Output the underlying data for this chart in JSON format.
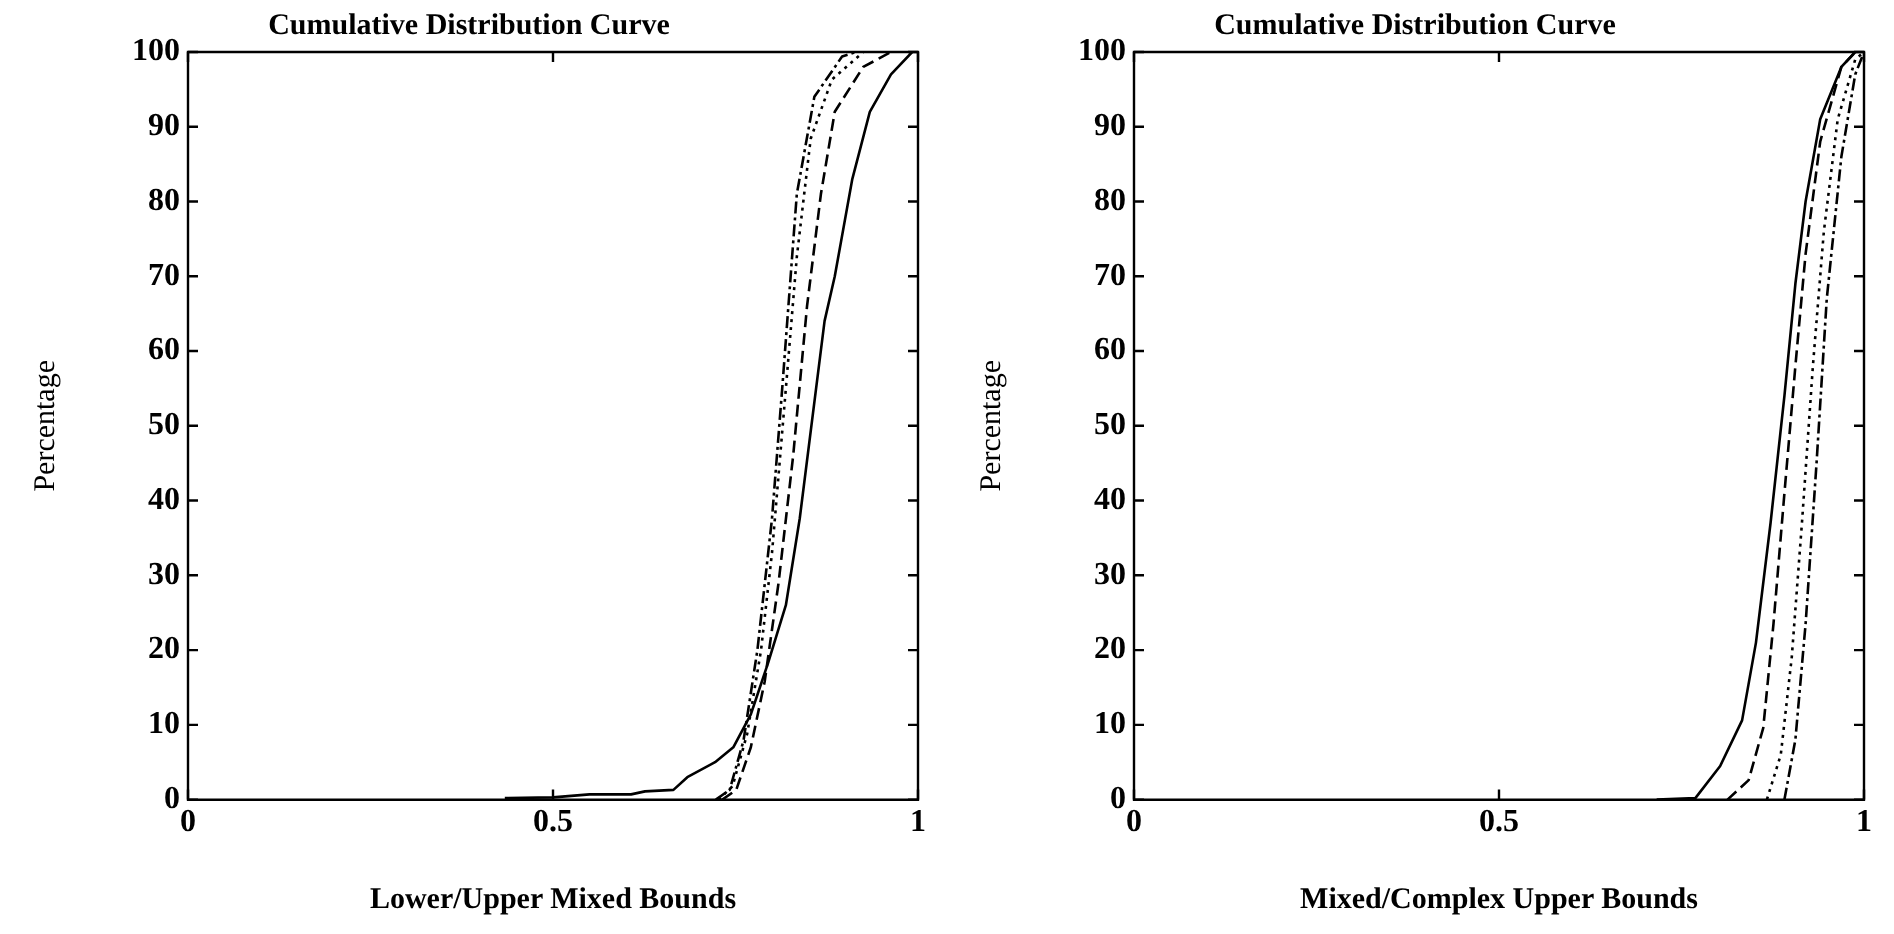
{
  "chart_data": [
    {
      "type": "line",
      "title": "Cumulative Distribution Curve",
      "xlabel": "Lower/Upper Mixed Bounds",
      "ylabel": "Percentage",
      "xlim": [
        0,
        1
      ],
      "xticks": [
        0,
        0.5,
        1
      ],
      "ylim": [
        0,
        100
      ],
      "yticks": [
        0,
        10,
        20,
        30,
        40,
        50,
        60,
        70,
        80,
        90,
        100
      ],
      "grid": false,
      "legend": false,
      "marker": "none",
      "series": [
        {
          "color": "#000000",
          "line_style": "solid",
          "x": [
            0.434,
            0.5,
            0.55,
            0.607,
            0.626,
            0.665,
            0.684,
            0.722,
            0.747,
            0.771,
            0.795,
            0.819,
            0.838,
            0.872,
            0.886,
            0.91,
            0.934,
            0.963,
            0.992
          ],
          "values": [
            0.2,
            0.3,
            0.7,
            0.7,
            1.1,
            1.3,
            3,
            5,
            7,
            11.4,
            18.4,
            26,
            37.6,
            64,
            70,
            83,
            92,
            97,
            100
          ]
        },
        {
          "color": "#000000",
          "line_style": "dashed",
          "x": [
            0.732,
            0.751,
            0.771,
            0.79,
            0.809,
            0.829,
            0.848,
            0.867,
            0.886,
            0.925,
            0.963
          ],
          "values": [
            0,
            1.3,
            7,
            15.8,
            29,
            46,
            66,
            81,
            92,
            98,
            100
          ]
        },
        {
          "color": "#000000",
          "line_style": "dotted",
          "x": [
            0.727,
            0.746,
            0.766,
            0.785,
            0.8,
            0.819,
            0.834,
            0.853,
            0.882,
            0.925
          ],
          "values": [
            0,
            1.8,
            8.8,
            20,
            33,
            55,
            72.6,
            88.4,
            96.3,
            100
          ]
        },
        {
          "color": "#000000",
          "line_style": "dashdot",
          "x": [
            0.723,
            0.742,
            0.761,
            0.78,
            0.8,
            0.814,
            0.834,
            0.858,
            0.896,
            0.915
          ],
          "values": [
            0,
            1.3,
            7.9,
            20,
            37.6,
            55,
            81,
            94,
            99.4,
            100
          ]
        }
      ]
    },
    {
      "type": "line",
      "title": "Cumulative Distribution Curve",
      "xlabel": "Mixed/Complex Upper Bounds",
      "ylabel": "Percentage",
      "xlim": [
        0,
        1
      ],
      "xticks": [
        0,
        0.5,
        1
      ],
      "ylim": [
        0,
        100
      ],
      "yticks": [
        0,
        10,
        20,
        30,
        40,
        50,
        60,
        70,
        80,
        90,
        100
      ],
      "grid": false,
      "legend": false,
      "marker": "none",
      "series": [
        {
          "color": "#000000",
          "line_style": "solid",
          "x": [
            0.716,
            0.769,
            0.803,
            0.833,
            0.852,
            0.872,
            0.891,
            0.906,
            0.92,
            0.94,
            0.969,
            0.988
          ],
          "values": [
            0,
            0.2,
            4.5,
            10.6,
            21,
            37,
            54,
            69,
            80,
            91,
            98,
            100
          ]
        },
        {
          "color": "#000000",
          "line_style": "dashed",
          "x": [
            0.813,
            0.842,
            0.862,
            0.876,
            0.891,
            0.906,
            0.92,
            0.94,
            0.969,
            0.988
          ],
          "values": [
            0,
            2.6,
            9.6,
            23.5,
            41,
            58,
            73,
            88,
            98,
            100
          ]
        },
        {
          "color": "#000000",
          "line_style": "dotted",
          "x": [
            0.867,
            0.886,
            0.901,
            0.915,
            0.93,
            0.945,
            0.964,
            0.988,
            1
          ],
          "values": [
            0,
            6,
            19,
            37,
            58,
            76,
            91,
            99,
            100
          ]
        },
        {
          "color": "#000000",
          "line_style": "dashdot",
          "x": [
            0.891,
            0.906,
            0.92,
            0.935,
            0.949,
            0.969,
            0.988,
            1
          ],
          "values": [
            0,
            8,
            23.5,
            45,
            67,
            86,
            97,
            100
          ]
        }
      ]
    }
  ]
}
